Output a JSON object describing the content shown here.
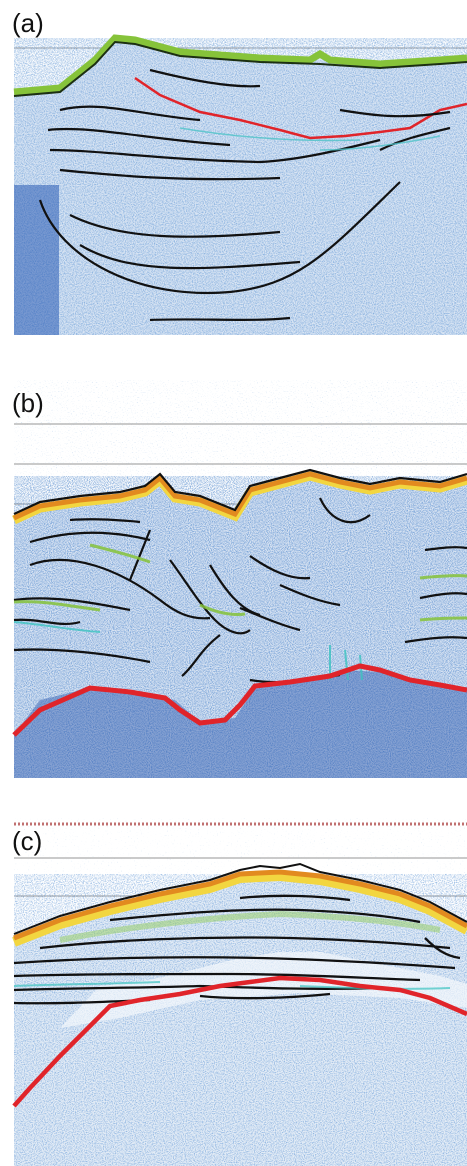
{
  "figure": {
    "panels": [
      {
        "id": "a",
        "label": "(a)"
      },
      {
        "id": "b",
        "label": "(b)"
      },
      {
        "id": "c",
        "label": "(c)"
      }
    ]
  },
  "colors": {
    "background_speckle": "#1e4fa8",
    "light_speckle": "#7fa6d6",
    "green_reflector": "#86c33a",
    "orange_reflector": "#e28a1f",
    "yellow_reflector": "#f2d640",
    "red_horizon": "#e0242a",
    "black_horizon": "#111111",
    "gridline": "#6b6b6b"
  }
}
